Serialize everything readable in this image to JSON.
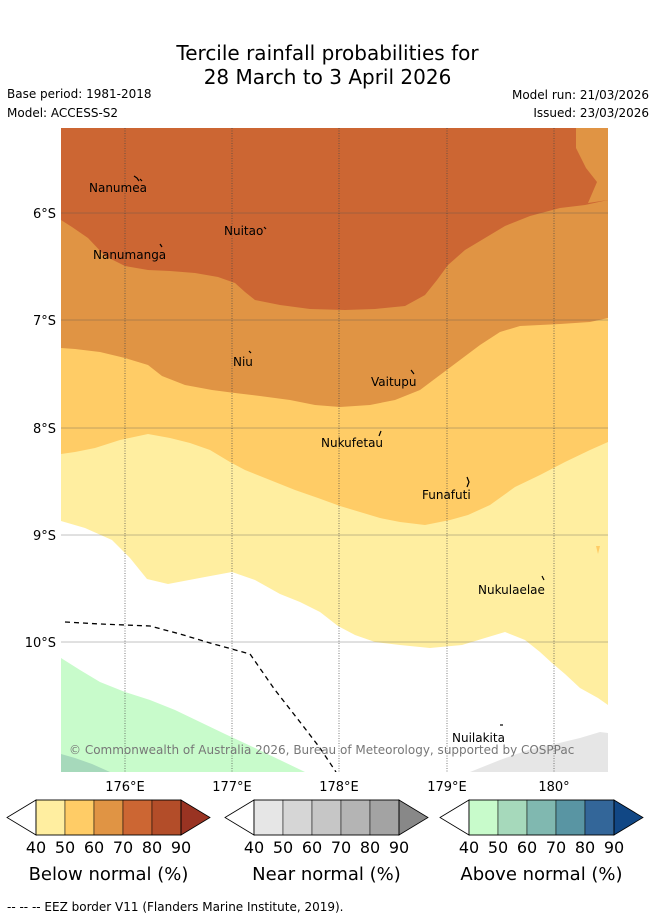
{
  "title": {
    "line1": "Tercile rainfall probabilities for",
    "line2": "28 March to 3 April 2026"
  },
  "meta": {
    "base_period": "Base period: 1981-2018",
    "model": "Model: ACCESS-S2",
    "model_run": "Model run: 21/03/2026",
    "issued": "Issued: 23/03/2026"
  },
  "map": {
    "lat_labels": [
      "6°S",
      "7°S",
      "8°S",
      "9°S",
      "10°S"
    ],
    "lon_labels": [
      "176°E",
      "177°E",
      "178°E",
      "179°E",
      "180°"
    ],
    "places": [
      {
        "name": "Nanumea"
      },
      {
        "name": "Nuitao"
      },
      {
        "name": "Nanumanga"
      },
      {
        "name": "Niu"
      },
      {
        "name": "Vaitupu"
      },
      {
        "name": "Nukufetau"
      },
      {
        "name": "Funafuti"
      },
      {
        "name": "Nukulaelae"
      },
      {
        "name": "Nuilakita"
      }
    ],
    "copyright": "© Commonwealth of Australia 2026, Bureau of Meteorology, supported by COSPPac"
  },
  "legend": {
    "below": {
      "title": "Below normal (%)",
      "ticks": [
        "40",
        "50",
        "60",
        "70",
        "80",
        "90"
      ],
      "colors": [
        "#ffeea0",
        "#ffcc66",
        "#e09444",
        "#cc6633",
        "#b34d29",
        "#993322"
      ]
    },
    "near": {
      "title": "Near normal (%)",
      "ticks": [
        "40",
        "50",
        "60",
        "70",
        "80",
        "90"
      ],
      "colors": [
        "#e6e6e6",
        "#d6d6d6",
        "#c6c6c6",
        "#b4b4b4",
        "#a3a3a3",
        "#888888"
      ]
    },
    "above": {
      "title": "Above normal (%)",
      "ticks": [
        "40",
        "50",
        "60",
        "70",
        "80",
        "90"
      ],
      "colors": [
        "#c8fbcb",
        "#a6d9bb",
        "#80b8b0",
        "#5995a3",
        "#336699",
        "#114785"
      ]
    }
  },
  "footer": {
    "eez": "--  --  -- EEZ border V11 (Flanders Marine Institute, 2019)."
  }
}
